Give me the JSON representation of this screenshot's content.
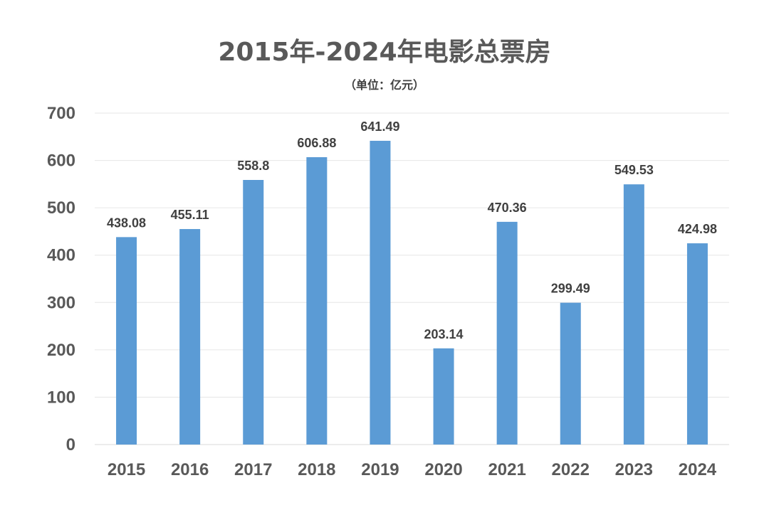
{
  "chart_data": {
    "type": "bar",
    "title": "2015年-2024年电影总票房",
    "subtitle": "（单位：亿元）",
    "categories": [
      "2015",
      "2016",
      "2017",
      "2018",
      "2019",
      "2020",
      "2021",
      "2022",
      "2023",
      "2024"
    ],
    "series": [
      {
        "values": [
          438.08,
          455.11,
          558.8,
          606.88,
          641.49,
          203.14,
          470.36,
          299.49,
          549.53,
          424.98
        ],
        "labels": [
          "438.08",
          "455.11",
          "558.8",
          "606.88",
          "641.49",
          "203.14",
          "470.36",
          "299.49",
          "549.53",
          "424.98"
        ],
        "color": "#5b9bd5"
      }
    ],
    "ylim": [
      0,
      700
    ],
    "yticks": [
      "0",
      "100",
      "200",
      "300",
      "400",
      "500",
      "600",
      "700"
    ],
    "grid": true,
    "legend": "none",
    "colors": {
      "bar": "#5b9bd5",
      "grid": "#e6e6e6",
      "tick_text": "#595959",
      "label_text": "#404040"
    }
  }
}
